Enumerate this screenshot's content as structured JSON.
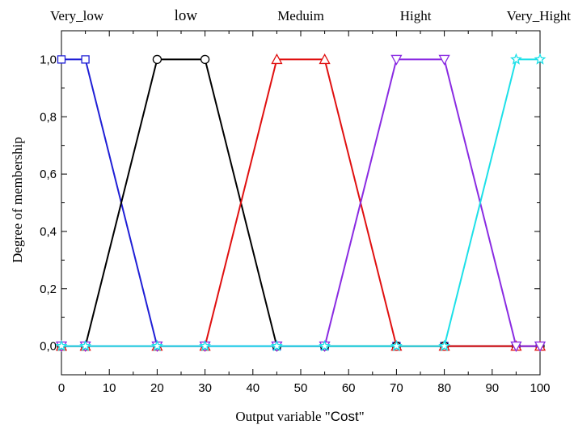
{
  "chart_data": {
    "type": "line",
    "xlabel_prefix": "Output variable \"",
    "xlabel_var": "Cost",
    "xlabel_suffix": "\"",
    "ylabel": "Degree of membership",
    "xlim": [
      0,
      100
    ],
    "ylim": [
      -0.1,
      1.1
    ],
    "xticks": [
      0,
      10,
      20,
      30,
      40,
      50,
      60,
      70,
      80,
      90,
      100
    ],
    "yticks": [
      0.0,
      0.2,
      0.4,
      0.6,
      0.8,
      1.0
    ],
    "ytick_labels": [
      "0,0",
      "0,2",
      "0,4",
      "0,6",
      "0,8",
      "1,0"
    ],
    "grid": false,
    "series": [
      {
        "name": "Very_low",
        "color": "#1f1fd6",
        "marker": "square",
        "x": [
          0,
          5,
          20,
          30,
          45,
          55,
          70,
          80,
          95,
          100
        ],
        "y": [
          1,
          1,
          0,
          0,
          0,
          0,
          0,
          0,
          0,
          0
        ]
      },
      {
        "name": "low",
        "color": "#000000",
        "marker": "circle",
        "x": [
          0,
          5,
          20,
          30,
          45,
          55,
          70,
          80,
          95,
          100
        ],
        "y": [
          0,
          0,
          1,
          1,
          0,
          0,
          0,
          0,
          0,
          0
        ]
      },
      {
        "name": "Meduim",
        "color": "#e01010",
        "marker": "triangle-up",
        "x": [
          0,
          5,
          20,
          30,
          45,
          55,
          70,
          80,
          95,
          100
        ],
        "y": [
          0,
          0,
          0,
          0,
          1,
          1,
          0,
          0,
          0,
          0
        ]
      },
      {
        "name": "Hight",
        "color": "#8a2be2",
        "marker": "triangle-down",
        "x": [
          0,
          5,
          20,
          30,
          45,
          55,
          70,
          80,
          95,
          100
        ],
        "y": [
          0,
          0,
          0,
          0,
          0,
          0,
          1,
          1,
          0,
          0
        ]
      },
      {
        "name": "Very_Hight",
        "color": "#1de0e8",
        "marker": "star",
        "x": [
          0,
          5,
          20,
          30,
          45,
          55,
          70,
          80,
          95,
          100
        ],
        "y": [
          0,
          0,
          0,
          0,
          0,
          0,
          0,
          0,
          1,
          1
        ]
      }
    ],
    "legend": "top",
    "legend_labels": [
      {
        "text": "Very_low",
        "x": 0
      },
      {
        "text": "low",
        "x": 26
      },
      {
        "text": "Meduim",
        "x": 50
      },
      {
        "text": "Hight",
        "x": 74
      },
      {
        "text": "Very_Hight",
        "x": 96
      }
    ]
  }
}
